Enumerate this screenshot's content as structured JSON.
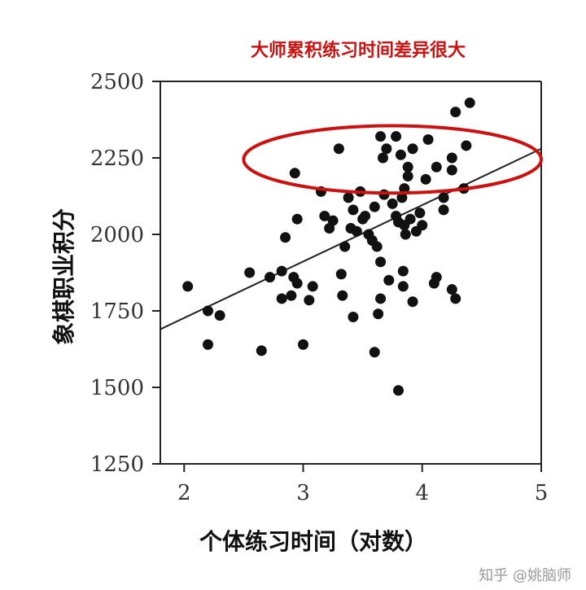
{
  "chart_data": {
    "type": "scatter",
    "title": "大师累积练习时间差异很大",
    "xlabel": "个体练习时间（对数）",
    "ylabel": "象棋职业积分",
    "xlim": [
      1.8,
      5
    ],
    "ylim": [
      1250,
      2500
    ],
    "x_ticks": [
      "2",
      "3",
      "4",
      "5"
    ],
    "y_ticks": [
      "1250",
      "1500",
      "1750",
      "2000",
      "2250",
      "2500"
    ],
    "trendline": {
      "x": [
        1.8,
        5
      ],
      "y": [
        1690,
        2280
      ]
    },
    "highlight_ellipse": {
      "center": [
        3.75,
        2245
      ],
      "rx": 1.25,
      "ry": 110
    },
    "points": [
      [
        2.03,
        1830
      ],
      [
        2.2,
        1750
      ],
      [
        2.2,
        1640
      ],
      [
        2.3,
        1735
      ],
      [
        2.55,
        1875
      ],
      [
        2.65,
        1620
      ],
      [
        2.72,
        1860
      ],
      [
        2.82,
        1880
      ],
      [
        2.82,
        1790
      ],
      [
        2.85,
        1990
      ],
      [
        2.9,
        1800
      ],
      [
        2.92,
        1860
      ],
      [
        2.95,
        2050
      ],
      [
        2.93,
        2200
      ],
      [
        2.95,
        1840
      ],
      [
        3.0,
        1640
      ],
      [
        3.05,
        1785
      ],
      [
        3.08,
        1830
      ],
      [
        3.15,
        2140
      ],
      [
        3.18,
        2060
      ],
      [
        3.22,
        2020
      ],
      [
        3.25,
        2045
      ],
      [
        3.3,
        2280
      ],
      [
        3.32,
        1870
      ],
      [
        3.33,
        1800
      ],
      [
        3.35,
        1960
      ],
      [
        3.38,
        2120
      ],
      [
        3.4,
        2020
      ],
      [
        3.42,
        1730
      ],
      [
        3.42,
        2080
      ],
      [
        3.45,
        2010
      ],
      [
        3.48,
        2140
      ],
      [
        3.5,
        2050
      ],
      [
        3.52,
        2060
      ],
      [
        3.55,
        2000
      ],
      [
        3.58,
        1980
      ],
      [
        3.6,
        2090
      ],
      [
        3.6,
        1615
      ],
      [
        3.62,
        1960
      ],
      [
        3.63,
        1740
      ],
      [
        3.65,
        1790
      ],
      [
        3.65,
        1910
      ],
      [
        3.65,
        2320
      ],
      [
        3.67,
        2250
      ],
      [
        3.68,
        2130
      ],
      [
        3.7,
        2280
      ],
      [
        3.72,
        1850
      ],
      [
        3.75,
        2100
      ],
      [
        3.78,
        2060
      ],
      [
        3.78,
        2320
      ],
      [
        3.8,
        1490
      ],
      [
        3.8,
        2040
      ],
      [
        3.82,
        2260
      ],
      [
        3.83,
        2120
      ],
      [
        3.84,
        1880
      ],
      [
        3.84,
        1830
      ],
      [
        3.85,
        2150
      ],
      [
        3.85,
        2030
      ],
      [
        3.86,
        2000
      ],
      [
        3.88,
        2220
      ],
      [
        3.88,
        2190
      ],
      [
        3.9,
        2050
      ],
      [
        3.92,
        1780
      ],
      [
        3.92,
        2280
      ],
      [
        3.95,
        2010
      ],
      [
        3.98,
        2070
      ],
      [
        4.0,
        2030
      ],
      [
        4.03,
        2180
      ],
      [
        4.05,
        2310
      ],
      [
        4.1,
        1840
      ],
      [
        4.12,
        1860
      ],
      [
        4.12,
        2220
      ],
      [
        4.18,
        2120
      ],
      [
        4.18,
        2080
      ],
      [
        4.25,
        2210
      ],
      [
        4.25,
        1820
      ],
      [
        4.25,
        2250
      ],
      [
        4.28,
        2400
      ],
      [
        4.28,
        1790
      ],
      [
        4.35,
        2150
      ],
      [
        4.37,
        2290
      ],
      [
        4.4,
        2430
      ]
    ]
  },
  "watermark": "知乎 @姚脑师"
}
